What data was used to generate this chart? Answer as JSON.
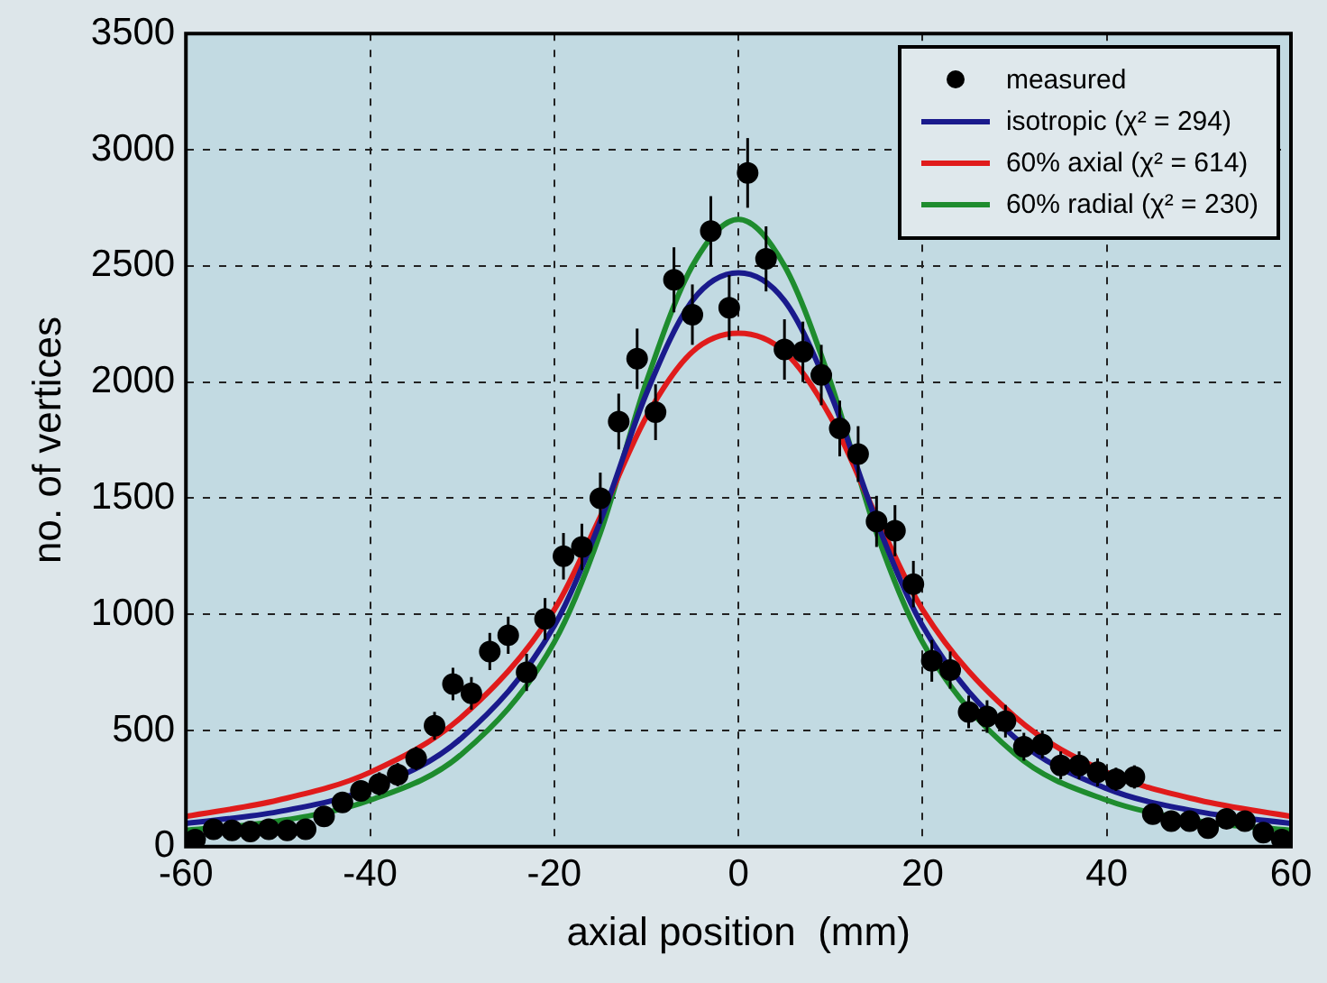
{
  "chart_data": {
    "type": "scatter",
    "xlabel": "axial position  (mm)",
    "ylabel": "no. of vertices",
    "xlim": [
      -60,
      60
    ],
    "xticks": [
      -60,
      -40,
      -20,
      0,
      20,
      40,
      60
    ],
    "ylim": [
      0,
      3500
    ],
    "yticks": [
      0,
      500,
      1000,
      1500,
      2000,
      2500,
      3000,
      3500
    ],
    "grid": true,
    "legend": "top right",
    "series": [
      {
        "name": "measured",
        "marker": "circle",
        "color": "#000000",
        "x": [
          -59,
          -57,
          -55,
          -53,
          -51,
          -49,
          -47,
          -45,
          -43,
          -41,
          -39,
          -37,
          -35,
          -33,
          -31,
          -29,
          -27,
          -25,
          -23,
          -21,
          -19,
          -17,
          -15,
          -13,
          -11,
          -9,
          -7,
          -5,
          -3,
          -1,
          1,
          3,
          5,
          7,
          9,
          11,
          13,
          15,
          17,
          19,
          21,
          23,
          25,
          27,
          29,
          31,
          33,
          35,
          37,
          39,
          41,
          43,
          45,
          47,
          49,
          51,
          53,
          55,
          57,
          59
        ],
        "values": [
          30,
          75,
          70,
          65,
          75,
          70,
          75,
          130,
          190,
          240,
          270,
          310,
          380,
          520,
          700,
          660,
          840,
          910,
          750,
          980,
          1250,
          1290,
          1500,
          1830,
          2100,
          1870,
          2440,
          2290,
          2650,
          2320,
          2900,
          2530,
          2140,
          2130,
          2030,
          1800,
          1690,
          1400,
          1360,
          1130,
          800,
          760,
          580,
          560,
          540,
          430,
          440,
          350,
          350,
          320,
          290,
          300,
          140,
          110,
          110,
          80,
          120,
          110,
          60,
          30
        ],
        "errors": [
          30,
          30,
          30,
          30,
          30,
          30,
          30,
          40,
          40,
          40,
          50,
          50,
          50,
          60,
          70,
          70,
          80,
          80,
          80,
          90,
          100,
          100,
          110,
          120,
          130,
          120,
          140,
          130,
          150,
          140,
          150,
          140,
          130,
          130,
          130,
          120,
          120,
          110,
          110,
          100,
          90,
          80,
          70,
          70,
          70,
          60,
          60,
          60,
          60,
          60,
          50,
          50,
          40,
          40,
          40,
          30,
          40,
          40,
          30,
          30
        ]
      },
      {
        "name": "isotropic (χ² = 294)",
        "type": "line",
        "color": "#1a1a8c",
        "x": [
          -60,
          -50,
          -40,
          -30,
          -20,
          -15,
          -10,
          -5,
          0,
          5,
          10,
          15,
          20,
          30,
          40,
          50,
          60
        ],
        "values": [
          100,
          150,
          250,
          470,
          950,
          1400,
          1950,
          2350,
          2470,
          2350,
          1950,
          1400,
          950,
          470,
          250,
          150,
          100
        ]
      },
      {
        "name": "60% axial (χ² = 614)",
        "type": "line",
        "color": "#e01b1b",
        "x": [
          -60,
          -50,
          -40,
          -30,
          -20,
          -15,
          -10,
          -5,
          0,
          5,
          10,
          15,
          20,
          30,
          40,
          50,
          60
        ],
        "values": [
          130,
          200,
          320,
          560,
          1020,
          1420,
          1850,
          2130,
          2210,
          2130,
          1850,
          1420,
          1020,
          560,
          320,
          200,
          130
        ]
      },
      {
        "name": "60% radial (χ² = 230)",
        "type": "line",
        "color": "#1e8c2e",
        "x": [
          -60,
          -50,
          -40,
          -30,
          -20,
          -15,
          -10,
          -5,
          0,
          5,
          10,
          15,
          20,
          30,
          40,
          50,
          60
        ],
        "values": [
          70,
          110,
          200,
          400,
          880,
          1350,
          2000,
          2500,
          2700,
          2500,
          2000,
          1350,
          880,
          400,
          200,
          110,
          70
        ]
      }
    ]
  }
}
